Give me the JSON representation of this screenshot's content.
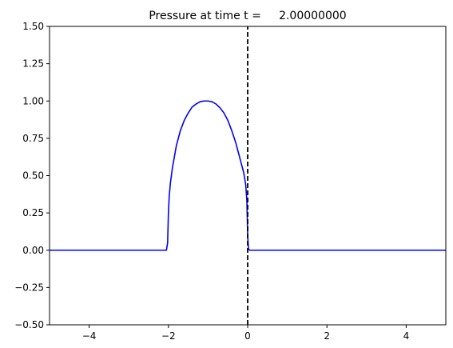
{
  "chart_data": {
    "type": "line",
    "title": "Pressure at time t =     2.00000000",
    "xlabel": "",
    "ylabel": "",
    "xlim": [
      -5,
      5
    ],
    "ylim": [
      -0.5,
      1.5
    ],
    "grid": false,
    "x_ticks": [
      -4,
      -2,
      0,
      2,
      4
    ],
    "x_tick_labels": [
      "−4",
      "−2",
      "0",
      "2",
      "4"
    ],
    "y_ticks": [
      -0.5,
      -0.25,
      0.0,
      0.25,
      0.5,
      0.75,
      1.0,
      1.25,
      1.5
    ],
    "y_tick_labels": [
      "−0.50",
      "−0.25",
      "0.00",
      "0.25",
      "0.50",
      "0.75",
      "1.00",
      "1.25",
      "1.50"
    ],
    "series": [
      {
        "color": "#0000ff",
        "style": "solid",
        "x": [
          -5,
          -2.05,
          -2.02,
          -2.0,
          -1.98,
          -1.95,
          -1.9,
          -1.8,
          -1.7,
          -1.6,
          -1.5,
          -1.4,
          -1.3,
          -1.2,
          -1.1,
          -1.0,
          -0.9,
          -0.8,
          -0.7,
          -0.6,
          -0.5,
          -0.4,
          -0.3,
          -0.2,
          -0.1,
          -0.05,
          -0.02,
          0.0,
          0.02,
          0.05,
          5
        ],
        "y": [
          0,
          0,
          0.05,
          0.25,
          0.36,
          0.45,
          0.55,
          0.7,
          0.8,
          0.87,
          0.92,
          0.96,
          0.98,
          0.995,
          1.0,
          1.0,
          0.995,
          0.98,
          0.955,
          0.92,
          0.87,
          0.8,
          0.72,
          0.62,
          0.52,
          0.44,
          0.33,
          0.1,
          0.01,
          0,
          0
        ]
      },
      {
        "color": "#000000",
        "style": "dashed",
        "x": [
          0,
          0
        ],
        "y": [
          -0.5,
          1.5
        ]
      }
    ]
  }
}
